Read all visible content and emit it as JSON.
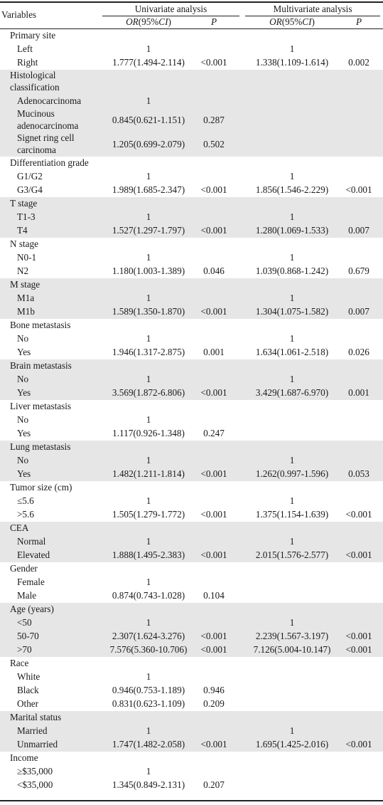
{
  "header": {
    "variables": "Variables",
    "univariate": "Univariate analysis",
    "multivariate": "Multivariate analysis",
    "or_label": "OR",
    "ci_label": "(95%",
    "ci_italic": "CI",
    "ci_close": ")",
    "p_label": "P"
  },
  "rows": [
    {
      "label": "Primary site",
      "cat": true,
      "shade": false
    },
    {
      "label": "Left",
      "u_or": "1",
      "m_or": "1",
      "shade": false
    },
    {
      "label": "Right",
      "u_or": "1.777(1.494-2.114)",
      "u_p": "<0.001",
      "m_or": "1.338(1.109-1.614)",
      "m_p": "0.002",
      "shade": false
    },
    {
      "label": "Histological classification",
      "cat": true,
      "shade": true
    },
    {
      "label": "Adenocarcinoma",
      "u_or": "1",
      "shade": true
    },
    {
      "label": "Mucinous adenocarcinoma",
      "u_or": "0.845(0.621-1.151)",
      "u_p": "0.287",
      "shade": true
    },
    {
      "label": "Signet ring cell carcinoma",
      "u_or": "1.205(0.699-2.079)",
      "u_p": "0.502",
      "shade": true
    },
    {
      "label": "Differentiation grade",
      "cat": true,
      "shade": false
    },
    {
      "label": "G1/G2",
      "u_or": "1",
      "m_or": "1",
      "shade": false
    },
    {
      "label": "G3/G4",
      "u_or": "1.989(1.685-2.347)",
      "u_p": "<0.001",
      "m_or": "1.856(1.546-2.229)",
      "m_p": "<0.001",
      "shade": false
    },
    {
      "label": "T stage",
      "cat": true,
      "shade": true
    },
    {
      "label": "T1-3",
      "u_or": "1",
      "m_or": "1",
      "shade": true
    },
    {
      "label": "T4",
      "u_or": "1.527(1.297-1.797)",
      "u_p": "<0.001",
      "m_or": "1.280(1.069-1.533)",
      "m_p": "0.007",
      "shade": true
    },
    {
      "label": "N stage",
      "cat": true,
      "shade": false
    },
    {
      "label": "N0-1",
      "u_or": "1",
      "m_or": "1",
      "shade": false
    },
    {
      "label": "N2",
      "u_or": "1.180(1.003-1.389)",
      "u_p": "0.046",
      "m_or": "1.039(0.868-1.242)",
      "m_p": "0.679",
      "shade": false
    },
    {
      "label": "M stage",
      "cat": true,
      "shade": true
    },
    {
      "label": "M1a",
      "u_or": "1",
      "m_or": "1",
      "shade": true
    },
    {
      "label": "M1b",
      "u_or": "1.589(1.350-1.870)",
      "u_p": "<0.001",
      "m_or": "1.304(1.075-1.582)",
      "m_p": "0.007",
      "shade": true
    },
    {
      "label": "Bone metastasis",
      "cat": true,
      "shade": false
    },
    {
      "label": "No",
      "u_or": "1",
      "m_or": "1",
      "shade": false
    },
    {
      "label": "Yes",
      "u_or": "1.946(1.317-2.875)",
      "u_p": "0.001",
      "m_or": "1.634(1.061-2.518)",
      "m_p": "0.026",
      "shade": false
    },
    {
      "label": "Brain metastasis",
      "cat": true,
      "shade": true
    },
    {
      "label": "No",
      "u_or": "1",
      "m_or": "1",
      "shade": true
    },
    {
      "label": "Yes",
      "u_or": "3.569(1.872-6.806)",
      "u_p": "<0.001",
      "m_or": "3.429(1.687-6.970)",
      "m_p": "0.001",
      "shade": true
    },
    {
      "label": "Liver metastasis",
      "cat": true,
      "shade": false
    },
    {
      "label": "No",
      "u_or": "1",
      "shade": false
    },
    {
      "label": "Yes",
      "u_or": "1.117(0.926-1.348)",
      "u_p": "0.247",
      "shade": false
    },
    {
      "label": "Lung metastasis",
      "cat": true,
      "shade": true
    },
    {
      "label": "No",
      "u_or": "1",
      "m_or": "1",
      "shade": true
    },
    {
      "label": "Yes",
      "u_or": "1.482(1.211-1.814)",
      "u_p": "<0.001",
      "m_or": "1.262(0.997-1.596)",
      "m_p": "0.053",
      "shade": true
    },
    {
      "label": "Tumor size (cm)",
      "cat": true,
      "shade": false
    },
    {
      "label": "≤5.6",
      "u_or": "1",
      "m_or": "1",
      "shade": false
    },
    {
      "label": ">5.6",
      "u_or": "1.505(1.279-1.772)",
      "u_p": "<0.001",
      "m_or": "1.375(1.154-1.639)",
      "m_p": "<0.001",
      "shade": false
    },
    {
      "label": "CEA",
      "cat": true,
      "shade": true
    },
    {
      "label": "Normal",
      "u_or": "1",
      "m_or": "1",
      "shade": true
    },
    {
      "label": "Elevated",
      "u_or": "1.888(1.495-2.383)",
      "u_p": "<0.001",
      "m_or": "2.015(1.576-2.577)",
      "m_p": "<0.001",
      "shade": true
    },
    {
      "label": "Gender",
      "cat": true,
      "shade": false
    },
    {
      "label": "Female",
      "u_or": "1",
      "shade": false
    },
    {
      "label": "Male",
      "u_or": "0.874(0.743-1.028)",
      "u_p": "0.104",
      "shade": false
    },
    {
      "label": "Age (years)",
      "cat": true,
      "shade": true
    },
    {
      "label": "<50",
      "u_or": "1",
      "m_or": "1",
      "shade": true
    },
    {
      "label": "50-70",
      "u_or": "2.307(1.624-3.276)",
      "u_p": "<0.001",
      "m_or": "2.239(1.567-3.197)",
      "m_p": "<0.001",
      "shade": true
    },
    {
      "label": ">70",
      "u_or": "7.576(5.360-10.706)",
      "u_p": "<0.001",
      "m_or": "7.126(5.004-10.147)",
      "m_p": "<0.001",
      "shade": true
    },
    {
      "label": "Race",
      "cat": true,
      "shade": false
    },
    {
      "label": "White",
      "u_or": "1",
      "shade": false
    },
    {
      "label": "Black",
      "u_or": "0.946(0.753-1.189)",
      "u_p": "0.946",
      "shade": false
    },
    {
      "label": "Other",
      "u_or": "0.831(0.623-1.109)",
      "u_p": "0.209",
      "shade": false
    },
    {
      "label": "Marital status",
      "cat": true,
      "shade": true
    },
    {
      "label": "Married",
      "u_or": "1",
      "m_or": "1",
      "shade": true
    },
    {
      "label": "Unmarried",
      "u_or": "1.747(1.482-2.058)",
      "u_p": "<0.001",
      "m_or": "1.695(1.425-2.016)",
      "m_p": "<0.001",
      "shade": true
    },
    {
      "label": "Income",
      "cat": true,
      "shade": false
    },
    {
      "label": "≥$35,000",
      "u_or": "1",
      "shade": false
    },
    {
      "label": "<$35,000",
      "u_or": "1.345(0.849-2.131)",
      "u_p": "0.207",
      "shade": false
    }
  ]
}
